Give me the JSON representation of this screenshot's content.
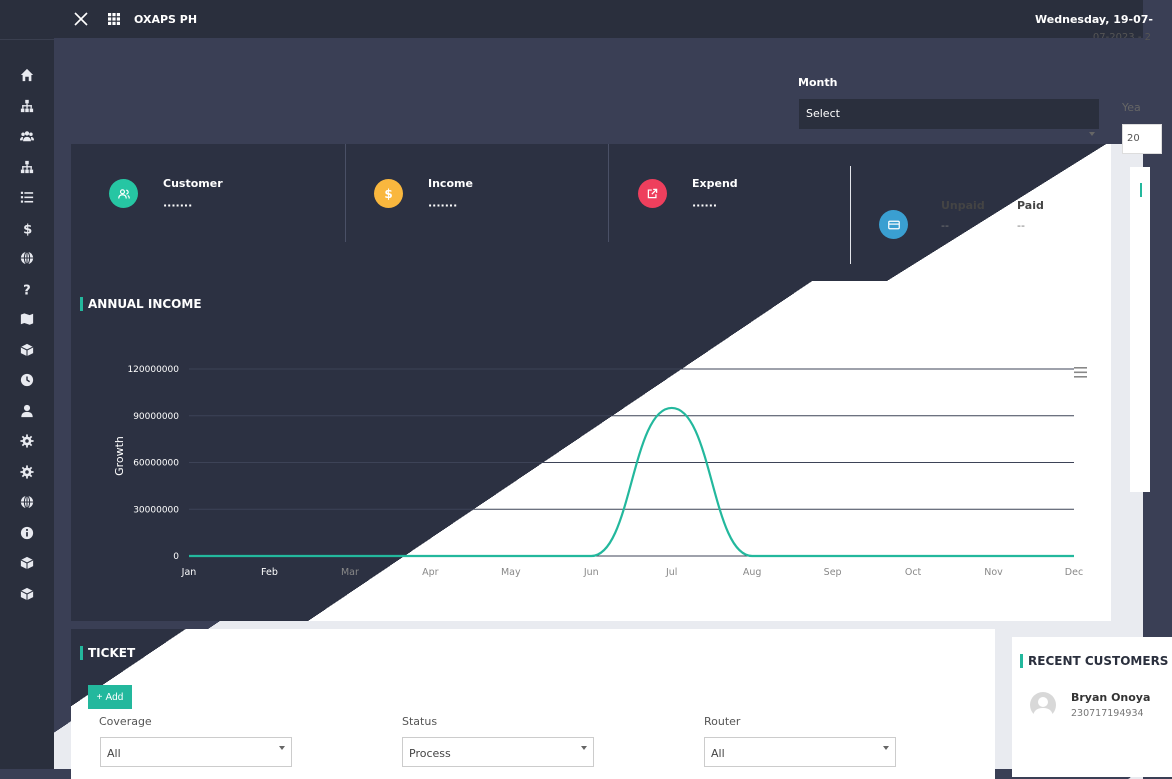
{
  "topbar": {
    "brand": "OXAPS PH",
    "date": "Wednesday, 19-07-",
    "subdate": "07-2023 - 2"
  },
  "filters": {
    "month_label": "Month",
    "month_value": "Select",
    "year_label": "Yea",
    "year_value": "20"
  },
  "stats": [
    {
      "title": "Customer",
      "value": "·······",
      "color": "#26c6a3",
      "icon": "users-icon"
    },
    {
      "title": "Income",
      "value": "·······",
      "color": "#f9b73e",
      "icon": "dollar-icon"
    },
    {
      "title": "Expend",
      "value": "······",
      "color": "#ee3f5d",
      "icon": "external-link-icon"
    }
  ],
  "payment": {
    "unpaid_label": "Unpaid",
    "unpaid_value": "--",
    "paid_label": "Paid",
    "paid_value": "--",
    "color": "#3a9fd1"
  },
  "annual_income": {
    "title": "ANNUAL INCOME"
  },
  "chart_data": {
    "type": "area",
    "title": "ANNUAL INCOME",
    "xlabel": "",
    "ylabel": "Growth",
    "categories": [
      "Jan",
      "Feb",
      "Mar",
      "Apr",
      "May",
      "Jun",
      "Jul",
      "Aug",
      "Sep",
      "Oct",
      "Nov",
      "Dec"
    ],
    "series": [
      {
        "values": [
          0,
          0,
          0,
          0,
          0,
          0,
          95000000,
          0,
          0,
          0,
          0,
          0
        ]
      }
    ],
    "yticks": [
      "120000000",
      "90000000",
      "60000000",
      "30000000",
      "0"
    ],
    "ylim": [
      0,
      120000000
    ],
    "grid": true,
    "color": "#23b89d"
  },
  "ticket": {
    "title": "TICKET",
    "add_label": "Add",
    "coverage_label": "Coverage",
    "coverage_value": "All",
    "status_label": "Status",
    "status_value": "Process",
    "router_label": "Router",
    "router_value": "All"
  },
  "recent_customers": {
    "title": "RECENT CUSTOMERS",
    "items": [
      {
        "name": "Bryan Onoya",
        "id": "230717194934"
      }
    ]
  },
  "sidebar": {
    "icons": [
      "home-icon",
      "sitemap-icon",
      "users-icon",
      "sitemap-icon",
      "list-icon",
      "dollar-icon",
      "globe-icon",
      "question-icon",
      "map-icon",
      "box-icon",
      "clock-icon",
      "user-icon",
      "gear-icon",
      "gear-icon",
      "globe-icon",
      "info-icon",
      "box-icon",
      "box-icon"
    ]
  },
  "colors": {
    "dark": "#2a2f3d",
    "accent": "#23b89d"
  }
}
